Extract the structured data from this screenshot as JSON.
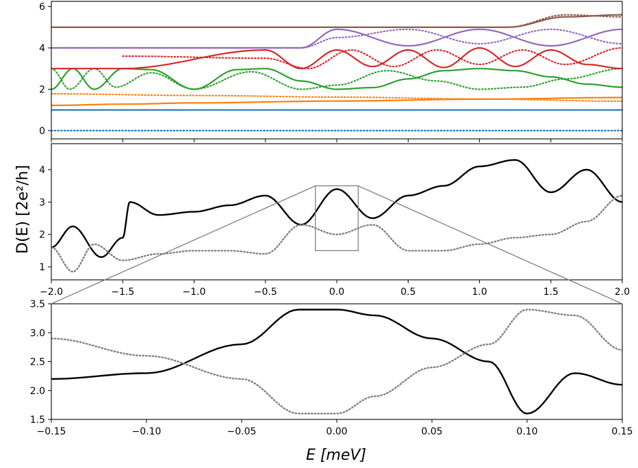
{
  "chart_data": [
    {
      "type": "line",
      "panel": "top",
      "xlim": [
        -2.0,
        2.0
      ],
      "ylim": [
        -0.4,
        6.25
      ],
      "yticks": [
        "0",
        "2",
        "4",
        "6"
      ],
      "series": [
        {
          "color": "#1f77b4",
          "style": "solid",
          "x": [
            -2.0,
            2.0
          ],
          "y": [
            1.0,
            1.0
          ]
        },
        {
          "color": "#1f77b4",
          "style": "dotted",
          "x": [
            -2.0,
            2.0
          ],
          "y": [
            0.0,
            0.0
          ]
        },
        {
          "color": "#ff7f0e",
          "style": "solid",
          "x": [
            -2.0,
            -1.5,
            -1.0,
            0.0,
            1.0,
            2.0
          ],
          "y": [
            1.22,
            1.28,
            1.34,
            1.43,
            1.52,
            1.6
          ]
        },
        {
          "color": "#ff7f0e",
          "style": "dotted",
          "x": [
            -2.0,
            -1.0,
            0.0,
            1.0,
            2.0
          ],
          "y": [
            1.78,
            1.7,
            1.62,
            1.53,
            1.42
          ]
        },
        {
          "color": "#2ca02c",
          "style": "solid",
          "x": [
            -2.0,
            -1.85,
            -1.7,
            -1.5,
            -1.3,
            -1.0,
            -0.7,
            -0.5,
            -0.25,
            0.0,
            0.25,
            0.5,
            0.75,
            1.0,
            1.25,
            1.5,
            1.75,
            2.0
          ],
          "y": [
            2.0,
            3.0,
            2.0,
            3.0,
            2.95,
            2.0,
            2.95,
            3.0,
            2.4,
            2.0,
            2.08,
            2.5,
            2.9,
            3.0,
            2.9,
            2.6,
            2.25,
            2.1
          ]
        },
        {
          "color": "#2ca02c",
          "style": "dotted",
          "x": [
            -2.0,
            -1.87,
            -1.7,
            -1.55,
            -1.3,
            -1.0,
            -0.6,
            -0.25,
            0.0,
            0.35,
            0.7,
            1.0,
            1.3,
            1.6,
            2.0
          ],
          "y": [
            3.0,
            2.0,
            3.0,
            2.1,
            2.8,
            2.0,
            2.85,
            2.0,
            2.2,
            2.9,
            2.4,
            2.0,
            2.1,
            2.5,
            3.0
          ]
        },
        {
          "color": "#d62728",
          "style": "solid",
          "x": [
            -2.0,
            -1.5,
            -0.5,
            -0.25,
            0.0,
            0.25,
            0.5,
            0.75,
            1.0,
            1.25,
            1.5,
            1.75,
            2.0
          ],
          "y": [
            3.0,
            3.0,
            3.9,
            3.0,
            3.9,
            3.1,
            3.9,
            3.05,
            4.0,
            3.1,
            3.9,
            3.2,
            3.0
          ]
        },
        {
          "color": "#d62728",
          "style": "dotted",
          "x": [
            -1.5,
            -0.5,
            -0.2,
            0.1,
            0.4,
            0.7,
            1.0,
            1.3,
            1.6,
            2.0
          ],
          "y": [
            3.6,
            3.5,
            3.0,
            3.9,
            3.1,
            3.9,
            3.2,
            3.9,
            3.2,
            4.0
          ]
        },
        {
          "color": "#9467bd",
          "style": "solid",
          "x": [
            -2.0,
            -0.25,
            0.0,
            0.5,
            1.0,
            1.5,
            2.0
          ],
          "y": [
            4.0,
            4.0,
            4.9,
            4.1,
            4.9,
            4.1,
            4.9
          ]
        },
        {
          "color": "#9467bd",
          "style": "dotted",
          "x": [
            -2.0,
            -0.25,
            0.0,
            0.5,
            1.0,
            1.5,
            2.0
          ],
          "y": [
            4.0,
            4.0,
            4.5,
            4.9,
            4.2,
            4.9,
            4.2
          ]
        },
        {
          "color": "#8c564b",
          "style": "solid",
          "x": [
            -2.0,
            1.2,
            1.6,
            2.0
          ],
          "y": [
            5.0,
            5.0,
            5.5,
            5.6
          ]
        },
        {
          "color": "#8c564b",
          "style": "dotted",
          "x": [
            -2.0,
            1.2,
            1.6,
            2.0
          ],
          "y": [
            5.0,
            5.0,
            5.6,
            5.5
          ]
        }
      ]
    },
    {
      "type": "line",
      "panel": "middle",
      "xlim": [
        -2.0,
        2.0
      ],
      "ylim": [
        0.6,
        4.8
      ],
      "xticks": [
        "−2.0",
        "−1.5",
        "−1.0",
        "−0.5",
        "0.0",
        "0.5",
        "1.0",
        "1.5",
        "2.0"
      ],
      "yticks": [
        "1",
        "2",
        "3",
        "4"
      ],
      "series": [
        {
          "color": "#000000",
          "style": "solid",
          "x": [
            -2.0,
            -1.85,
            -1.65,
            -1.5,
            -1.45,
            -1.25,
            -1.0,
            -0.75,
            -0.5,
            -0.25,
            0.0,
            0.25,
            0.5,
            0.75,
            1.0,
            1.25,
            1.5,
            1.75,
            2.0
          ],
          "y": [
            1.6,
            2.25,
            1.3,
            1.9,
            3.0,
            2.6,
            2.7,
            2.9,
            3.2,
            2.3,
            3.4,
            2.5,
            3.2,
            3.5,
            4.1,
            4.3,
            3.3,
            4.0,
            3.0
          ]
        },
        {
          "color": "#808080",
          "style": "dotted",
          "x": [
            -2.0,
            -1.85,
            -1.7,
            -1.5,
            -1.25,
            -1.0,
            -0.75,
            -0.5,
            -0.25,
            0.0,
            0.25,
            0.5,
            0.75,
            1.0,
            1.25,
            1.5,
            1.75,
            2.0
          ],
          "y": [
            1.6,
            0.85,
            1.7,
            1.2,
            1.4,
            1.5,
            1.5,
            1.4,
            2.3,
            2.0,
            2.3,
            1.5,
            1.5,
            1.7,
            1.9,
            2.0,
            2.4,
            3.2
          ]
        }
      ],
      "zoom_box": {
        "x": [
          -0.15,
          0.15
        ],
        "y": [
          1.5,
          3.5
        ]
      }
    },
    {
      "type": "line",
      "panel": "bottom",
      "xlim": [
        -0.15,
        0.15
      ],
      "ylim": [
        1.5,
        3.5
      ],
      "xlabel": "E [meV]",
      "ylabel": "D(E) [2e²/h]",
      "xticks": [
        "−0.15",
        "−0.10",
        "−0.05",
        "0.00",
        "0.05",
        "0.10",
        "0.15"
      ],
      "yticks": [
        "1.5",
        "2.0",
        "2.5",
        "3.0",
        "3.5"
      ],
      "series": [
        {
          "color": "#000000",
          "style": "solid",
          "x": [
            -0.15,
            -0.1,
            -0.05,
            -0.02,
            0.0,
            0.02,
            0.05,
            0.08,
            0.1,
            0.125,
            0.15
          ],
          "y": [
            2.2,
            2.3,
            2.8,
            3.4,
            3.4,
            3.3,
            2.9,
            2.5,
            1.6,
            2.3,
            2.1
          ]
        },
        {
          "color": "#808080",
          "style": "dotted",
          "x": [
            -0.15,
            -0.1,
            -0.05,
            -0.02,
            0.0,
            0.02,
            0.05,
            0.08,
            0.1,
            0.125,
            0.15
          ],
          "y": [
            2.9,
            2.6,
            2.2,
            1.6,
            1.6,
            1.9,
            2.4,
            2.8,
            3.4,
            3.3,
            2.7
          ]
        }
      ]
    }
  ]
}
